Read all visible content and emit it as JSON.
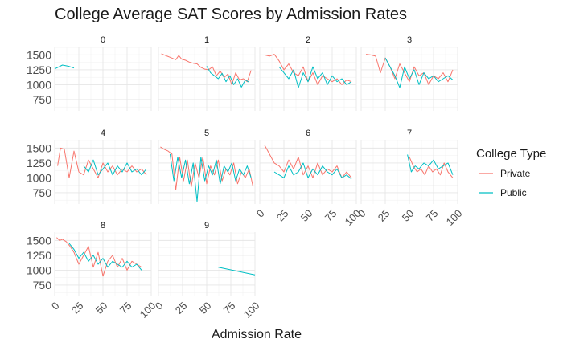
{
  "chart_data": {
    "type": "line",
    "title": "College Average SAT Scores by Admission Rates",
    "xlabel": "Admission Rate",
    "ylabel": "",
    "xlim": [
      0,
      100
    ],
    "ylim": [
      560,
      1640
    ],
    "x_ticks": [
      0,
      25,
      50,
      75,
      100
    ],
    "y_ticks": [
      750,
      1000,
      1250,
      1500
    ],
    "grid": true,
    "legend": {
      "title": "College Type",
      "position": "right",
      "entries": [
        {
          "name": "Private",
          "color": "#F8766D"
        },
        {
          "name": "Public",
          "color": "#00BFC4"
        }
      ]
    },
    "facets": [
      {
        "label": "0",
        "series": [
          {
            "name": "Public",
            "x": [
              0,
              8,
              14,
              20
            ],
            "y": [
              1265,
              1330,
              1310,
              1280
            ]
          }
        ]
      },
      {
        "label": "1",
        "series": [
          {
            "name": "Private",
            "x": [
              3,
              6,
              9,
              12,
              15,
              18,
              21,
              24,
              28,
              32,
              36,
              40,
              44,
              48,
              52,
              56,
              60,
              64,
              68,
              72,
              76,
              80,
              84,
              88,
              92,
              96
            ],
            "y": [
              1520,
              1500,
              1480,
              1460,
              1440,
              1420,
              1490,
              1430,
              1410,
              1380,
              1360,
              1350,
              1290,
              1260,
              1250,
              1300,
              1150,
              1230,
              1120,
              1180,
              1000,
              1200,
              1080,
              1100,
              1050,
              1240
            ]
          },
          {
            "name": "Public",
            "x": [
              50,
              54,
              58,
              62,
              66,
              70,
              74,
              78,
              82,
              86,
              90,
              94
            ],
            "y": [
              1310,
              1200,
              1150,
              1100,
              1190,
              1050,
              1150,
              1000,
              1100,
              960,
              1080,
              1040
            ]
          }
        ]
      },
      {
        "label": "2",
        "series": [
          {
            "name": "Private",
            "x": [
              5,
              10,
              15,
              20,
              25,
              30,
              35,
              40,
              45,
              50,
              55,
              60,
              65,
              70,
              75,
              80,
              85,
              90,
              95
            ],
            "y": [
              1500,
              1480,
              1510,
              1400,
              1250,
              1350,
              1200,
              1150,
              1300,
              1050,
              1200,
              1000,
              1150,
              1100,
              1050,
              1100,
              1000,
              1080,
              1050
            ]
          },
          {
            "name": "Public",
            "x": [
              20,
              25,
              30,
              35,
              40,
              45,
              50,
              55,
              60,
              65,
              70,
              75,
              80,
              85,
              90,
              95
            ],
            "y": [
              1300,
              1200,
              1100,
              1250,
              950,
              1200,
              1050,
              1300,
              1100,
              1200,
              1000,
              1150,
              1050,
              1100,
              1000,
              1050
            ]
          }
        ]
      },
      {
        "label": "3",
        "series": [
          {
            "name": "Private",
            "x": [
              5,
              10,
              15,
              20,
              25,
              30,
              35,
              40,
              45,
              50,
              55,
              60,
              65,
              70,
              75,
              80,
              85,
              90,
              95
            ],
            "y": [
              1510,
              1500,
              1480,
              1200,
              1450,
              1300,
              1100,
              1350,
              1200,
              1050,
              1300,
              1150,
              1200,
              1000,
              1150,
              1100,
              1200,
              1050,
              1250
            ]
          },
          {
            "name": "Public",
            "x": [
              25,
              30,
              35,
              40,
              45,
              50,
              55,
              60,
              65,
              70,
              75,
              80,
              85,
              90,
              95
            ],
            "y": [
              1450,
              1300,
              1150,
              950,
              1300,
              1100,
              1250,
              1000,
              1200,
              1100,
              1150,
              1050,
              1100,
              1150,
              1080
            ]
          }
        ]
      },
      {
        "label": "4",
        "series": [
          {
            "name": "Private",
            "x": [
              3,
              6,
              10,
              15,
              20,
              25,
              30,
              35,
              40,
              45,
              50,
              55,
              60,
              65,
              70,
              75,
              80,
              85,
              90,
              95
            ],
            "y": [
              1200,
              1500,
              1480,
              1000,
              1450,
              1100,
              1050,
              1300,
              1150,
              1000,
              1250,
              1100,
              1200,
              1050,
              1150,
              1100,
              1200,
              1100,
              1150,
              1050
            ]
          },
          {
            "name": "Public",
            "x": [
              30,
              35,
              40,
              45,
              50,
              55,
              60,
              65,
              70,
              75,
              80,
              85,
              90,
              95
            ],
            "y": [
              1200,
              1100,
              1300,
              1050,
              1150,
              1250,
              1050,
              1200,
              1100,
              1250,
              1100,
              1150,
              1050,
              1150
            ]
          }
        ]
      },
      {
        "label": "5",
        "series": [
          {
            "name": "Private",
            "x": [
              2,
              6,
              10,
              14,
              18,
              22,
              26,
              30,
              34,
              38,
              42,
              46,
              50,
              54,
              58,
              62,
              66,
              70,
              74,
              78,
              82,
              86,
              90,
              94,
              98
            ],
            "y": [
              1520,
              1480,
              1450,
              1400,
              800,
              1350,
              950,
              1300,
              850,
              1250,
              1000,
              1350,
              900,
              1200,
              1050,
              1300,
              950,
              1150,
              1050,
              1250,
              900,
              1100,
              1000,
              1150,
              850
            ]
          },
          {
            "name": "Public",
            "x": [
              12,
              16,
              20,
              24,
              28,
              32,
              36,
              40,
              44,
              48,
              52,
              56,
              60,
              64,
              68,
              72,
              76,
              80,
              84,
              88,
              92,
              96
            ],
            "y": [
              1400,
              950,
              1350,
              1000,
              1300,
              900,
              1250,
              600,
              1350,
              950,
              1200,
              1050,
              1300,
              900,
              1200,
              1100,
              1250,
              950,
              1150,
              1050,
              1200,
              1000
            ]
          }
        ]
      },
      {
        "label": "6",
        "series": [
          {
            "name": "Private",
            "x": [
              5,
              10,
              15,
              20,
              25,
              30,
              35,
              40,
              45,
              50,
              55,
              60,
              65,
              70,
              75,
              80,
              85,
              90,
              95
            ],
            "y": [
              1550,
              1400,
              1250,
              1200,
              1100,
              1300,
              1150,
              1350,
              1050,
              1200,
              1000,
              1250,
              1050,
              1150,
              1100,
              1200,
              1000,
              1100,
              1000
            ]
          },
          {
            "name": "Public",
            "x": [
              15,
              20,
              25,
              30,
              35,
              40,
              45,
              50,
              55,
              60,
              65,
              70,
              75,
              80,
              85,
              90,
              95
            ],
            "y": [
              1100,
              1050,
              1000,
              1200,
              1050,
              1100,
              1250,
              1000,
              1150,
              1050,
              1200,
              1100,
              1050,
              1150,
              1000,
              1050,
              980
            ]
          }
        ]
      },
      {
        "label": "7",
        "series": [
          {
            "name": "Private",
            "x": [
              50,
              54,
              58,
              62,
              66,
              70,
              74,
              78,
              82,
              86,
              90,
              95
            ],
            "y": [
              1350,
              1200,
              1100,
              1150,
              1050,
              1200,
              1100,
              1150,
              1050,
              1250,
              1100,
              1000
            ]
          },
          {
            "name": "Public",
            "x": [
              48,
              52,
              56,
              60,
              65,
              70,
              75,
              80,
              85,
              90,
              95
            ],
            "y": [
              1390,
              1100,
              1200,
              1150,
              1250,
              1200,
              1300,
              1150,
              1200,
              1250,
              1050
            ]
          }
        ]
      },
      {
        "label": "8",
        "series": [
          {
            "name": "Private",
            "x": [
              2,
              5,
              8,
              12,
              16,
              20,
              25,
              30,
              35,
              40,
              45,
              50,
              55,
              60,
              65,
              70,
              75,
              80,
              85,
              90
            ],
            "y": [
              1550,
              1500,
              1520,
              1480,
              1400,
              1300,
              1100,
              1250,
              1400,
              1050,
              1300,
              900,
              1150,
              1250,
              1050,
              1200,
              1000,
              1150,
              1100,
              1050
            ]
          },
          {
            "name": "Public",
            "x": [
              15,
              20,
              25,
              30,
              35,
              40,
              45,
              50,
              55,
              60,
              65,
              70,
              75,
              80,
              85,
              90
            ],
            "y": [
              1450,
              1350,
              1200,
              1300,
              1150,
              1250,
              1100,
              1200,
              1050,
              1150,
              1100,
              1050,
              1150,
              1050,
              1100,
              1000
            ]
          }
        ]
      },
      {
        "label": "9",
        "series": [
          {
            "name": "Public",
            "x": [
              62,
              100
            ],
            "y": [
              1050,
              920
            ]
          }
        ]
      }
    ]
  }
}
